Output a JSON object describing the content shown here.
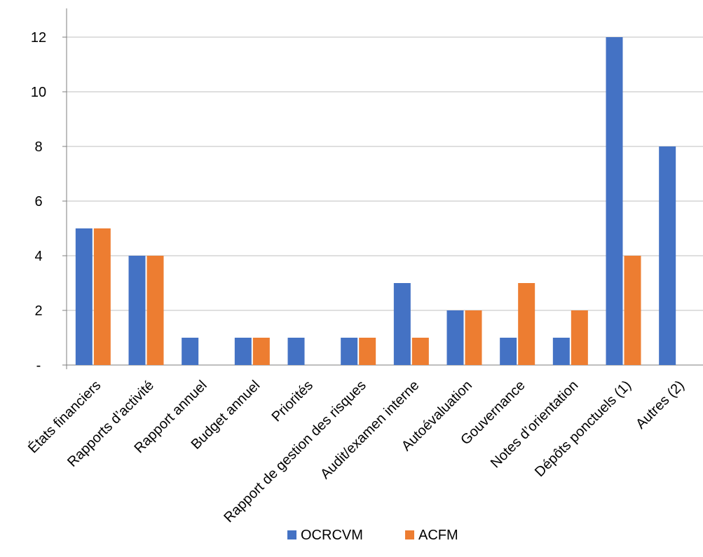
{
  "chart_data": {
    "type": "bar",
    "title": "",
    "xlabel": "",
    "ylabel": "",
    "ylim": [
      0,
      13
    ],
    "yticks": [
      {
        "value": 0,
        "label": "-"
      },
      {
        "value": 2,
        "label": "2"
      },
      {
        "value": 4,
        "label": "4"
      },
      {
        "value": 6,
        "label": "6"
      },
      {
        "value": 8,
        "label": "8"
      },
      {
        "value": 10,
        "label": "10"
      },
      {
        "value": 12,
        "label": "12"
      }
    ],
    "grid": true,
    "legend_position": "bottom",
    "categories": [
      "États financiers",
      "Rapports d’activité",
      "Rapport annuel",
      "Budget annuel",
      "Priorités",
      "Rapport de gestion des risques",
      "Audit/examen interne",
      "Autoévaluation",
      "Gouvernance",
      "Notes d’orientation",
      "Dépôts ponctuels (1)",
      "Autres (2)"
    ],
    "series": [
      {
        "name": "OCRCVM",
        "color": "#4472C4",
        "values": [
          5,
          4,
          1,
          1,
          1,
          1,
          3,
          2,
          1,
          1,
          12,
          8
        ]
      },
      {
        "name": "ACFM",
        "color": "#ED7D31",
        "values": [
          5,
          4,
          0,
          1,
          0,
          1,
          1,
          2,
          3,
          2,
          4,
          0
        ]
      }
    ]
  }
}
